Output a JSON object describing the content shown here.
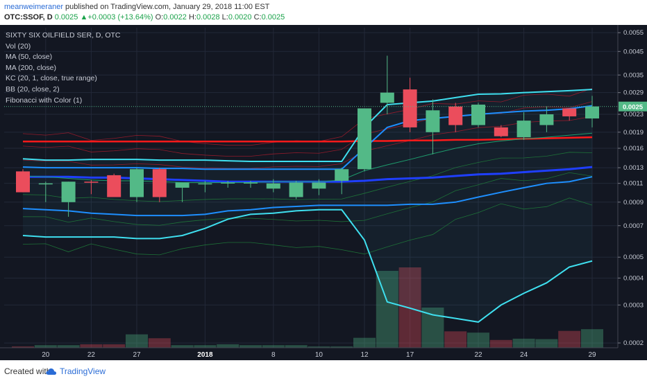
{
  "header": {
    "user": "meanweimeraner",
    "published": "published on TradingView.com, January 29, 2018 11:00 EST",
    "symbol": "OTC:SSOF, D",
    "last": "0.0025",
    "change": "▲+0.0003 (+13.64%)",
    "o_label": "O:",
    "o_value": "0.0022",
    "h_label": "H:",
    "h_value": "0.0028",
    "l_label": "L:",
    "l_value": "0.0020",
    "c_label": "C:",
    "c_value": "0.0025"
  },
  "legend": {
    "title": "SIXTY SIX OILFIELD SER, D, OTC",
    "items": [
      "Vol (20)",
      "MA (50, close)",
      "MA (200, close)",
      "KC (20, 1, close, true range)",
      "BB (20, close, 2)",
      "Fibonacci with Color (1)"
    ]
  },
  "footer": {
    "created": "Created with",
    "brand": "TradingView"
  },
  "colors": {
    "background": "#131722",
    "up": "#53b987",
    "down": "#eb4d5c",
    "ma50": "#ff1a1a",
    "ma200": "#1f3fff",
    "bb": "#3fe0f0",
    "kc": "#1e8fff",
    "last_label_bg": "#53b987"
  },
  "chart_data": {
    "type": "candlestick",
    "y_scale": "log",
    "ylim": [
      0.00019,
      0.0058
    ],
    "y_ticks": [
      "0.0055",
      "0.0045",
      "0.0035",
      "0.0029",
      "0.0023",
      "0.0019",
      "0.0016",
      "0.0013",
      "0.0011",
      "0.0009",
      "0.0007",
      "0.0005",
      "0.0004",
      "0.0003",
      "0.0002"
    ],
    "x_tick_labels": [
      {
        "label": "20",
        "index": 1
      },
      {
        "label": "22",
        "index": 3
      },
      {
        "label": "27",
        "index": 5
      },
      {
        "label": "2018",
        "index": 8
      },
      {
        "label": "8",
        "index": 11
      },
      {
        "label": "10",
        "index": 13
      },
      {
        "label": "12",
        "index": 15
      },
      {
        "label": "17",
        "index": 17
      },
      {
        "label": "22",
        "index": 20
      },
      {
        "label": "24",
        "index": 22
      },
      {
        "label": "29",
        "index": 25
      }
    ],
    "last_value": "0.0025",
    "candles": [
      {
        "o": 0.00125,
        "h": 0.00128,
        "l": 0.001,
        "c": 0.001
      },
      {
        "o": 0.0011,
        "h": 0.00112,
        "l": 0.0009,
        "c": 0.0011
      },
      {
        "o": 0.0009,
        "h": 0.00112,
        "l": 0.00077,
        "c": 0.00112
      },
      {
        "o": 0.00112,
        "h": 0.00114,
        "l": 0.00098,
        "c": 0.00111
      },
      {
        "o": 0.0012,
        "h": 0.00122,
        "l": 0.00095,
        "c": 0.00095
      },
      {
        "o": 0.00095,
        "h": 0.0013,
        "l": 0.0009,
        "c": 0.00128
      },
      {
        "o": 0.00128,
        "h": 0.0013,
        "l": 0.0009,
        "c": 0.00095
      },
      {
        "o": 0.00105,
        "h": 0.0011,
        "l": 0.0009,
        "c": 0.00111
      },
      {
        "o": 0.0011,
        "h": 0.00113,
        "l": 0.001,
        "c": 0.0011
      },
      {
        "o": 0.0011,
        "h": 0.00113,
        "l": 0.00105,
        "c": 0.00111
      },
      {
        "o": 0.00111,
        "h": 0.00113,
        "l": 0.00105,
        "c": 0.00111
      },
      {
        "o": 0.00104,
        "h": 0.00115,
        "l": 0.001,
        "c": 0.0011
      },
      {
        "o": 0.00095,
        "h": 0.00113,
        "l": 0.00093,
        "c": 0.00111
      },
      {
        "o": 0.00104,
        "h": 0.00115,
        "l": 0.00097,
        "c": 0.00111
      },
      {
        "o": 0.00113,
        "h": 0.0013,
        "l": 0.00098,
        "c": 0.00128
      },
      {
        "o": 0.00128,
        "h": 0.00245,
        "l": 0.00125,
        "c": 0.00245
      },
      {
        "o": 0.0026,
        "h": 0.0043,
        "l": 0.0023,
        "c": 0.0029
      },
      {
        "o": 0.003,
        "h": 0.0034,
        "l": 0.0019,
        "c": 0.002
      },
      {
        "o": 0.0019,
        "h": 0.0027,
        "l": 0.0015,
        "c": 0.0024
      },
      {
        "o": 0.0025,
        "h": 0.0026,
        "l": 0.0019,
        "c": 0.00205
      },
      {
        "o": 0.00205,
        "h": 0.0026,
        "l": 0.002,
        "c": 0.00255
      },
      {
        "o": 0.002,
        "h": 0.00205,
        "l": 0.0018,
        "c": 0.00182
      },
      {
        "o": 0.0018,
        "h": 0.00235,
        "l": 0.00175,
        "c": 0.00215
      },
      {
        "o": 0.00205,
        "h": 0.0025,
        "l": 0.0019,
        "c": 0.0023
      },
      {
        "o": 0.00245,
        "h": 0.00245,
        "l": 0.00215,
        "c": 0.00225
      },
      {
        "o": 0.0022,
        "h": 0.0028,
        "l": 0.002,
        "c": 0.0025
      }
    ],
    "volume": [
      3,
      6,
      6,
      8,
      8,
      31,
      22,
      6,
      6,
      8,
      6,
      6,
      6,
      3,
      3,
      23,
      178,
      186,
      93,
      38,
      35,
      18,
      21,
      20,
      39,
      43
    ],
    "ma50": [
      0.00172,
      0.00172,
      0.00172,
      0.00172,
      0.00172,
      0.00172,
      0.00172,
      0.00172,
      0.00172,
      0.00172,
      0.00172,
      0.00172,
      0.00172,
      0.00172,
      0.00172,
      0.00173,
      0.00173,
      0.00174,
      0.00174,
      0.00175,
      0.00175,
      0.00176,
      0.00177,
      0.00178,
      0.00179,
      0.0018
    ],
    "ma200": [
      0.00118,
      0.00118,
      0.00118,
      0.00117,
      0.00117,
      0.00116,
      0.00115,
      0.00114,
      0.00113,
      0.00112,
      0.00112,
      0.00112,
      0.00112,
      0.00112,
      0.00112,
      0.00113,
      0.00115,
      0.00116,
      0.00117,
      0.00119,
      0.00121,
      0.00122,
      0.00124,
      0.00126,
      0.00128,
      0.00131
    ],
    "bb_upper": [
      0.00143,
      0.00141,
      0.00141,
      0.00142,
      0.00142,
      0.00142,
      0.00141,
      0.00141,
      0.00141,
      0.0014,
      0.00139,
      0.00139,
      0.00139,
      0.00139,
      0.00139,
      0.002,
      0.00255,
      0.0026,
      0.00265,
      0.00275,
      0.00285,
      0.00286,
      0.0029,
      0.00293,
      0.00296,
      0.003
    ],
    "bb_basis": [
      0.00119,
      0.00118,
      0.00116,
      0.00114,
      0.00113,
      0.00113,
      0.00112,
      0.00111,
      0.00111,
      0.00111,
      0.00111,
      0.00112,
      0.00112,
      0.00112,
      0.00114,
      0.00126,
      0.00134,
      0.00142,
      0.00151,
      0.0016,
      0.00168,
      0.00173,
      0.00177,
      0.0018,
      0.00184,
      0.00188
    ],
    "bb_lower": [
      0.00063,
      0.00062,
      0.00062,
      0.00062,
      0.00062,
      0.00061,
      0.00061,
      0.00063,
      0.00068,
      0.00075,
      0.00079,
      0.0008,
      0.00082,
      0.00083,
      0.00083,
      0.0006,
      0.00031,
      0.00029,
      0.00027,
      0.00026,
      0.00025,
      0.0003,
      0.00034,
      0.00038,
      0.00045,
      0.00048
    ],
    "kc_upper": [
      0.00131,
      0.0013,
      0.0013,
      0.0013,
      0.0013,
      0.0013,
      0.00129,
      0.00129,
      0.00128,
      0.00128,
      0.00128,
      0.00128,
      0.00128,
      0.00128,
      0.00128,
      0.0016,
      0.002,
      0.00215,
      0.0022,
      0.00225,
      0.0023,
      0.00234,
      0.00238,
      0.0024,
      0.00244,
      0.00252
    ],
    "kc_lower": [
      0.00084,
      0.00083,
      0.00082,
      0.0008,
      0.00079,
      0.00078,
      0.00078,
      0.00078,
      0.00079,
      0.00082,
      0.00083,
      0.00085,
      0.00086,
      0.00087,
      0.00087,
      0.00087,
      0.00087,
      0.00088,
      0.00088,
      0.0009,
      0.00095,
      0.001,
      0.00105,
      0.0011,
      0.00112,
      0.00118
    ]
  }
}
